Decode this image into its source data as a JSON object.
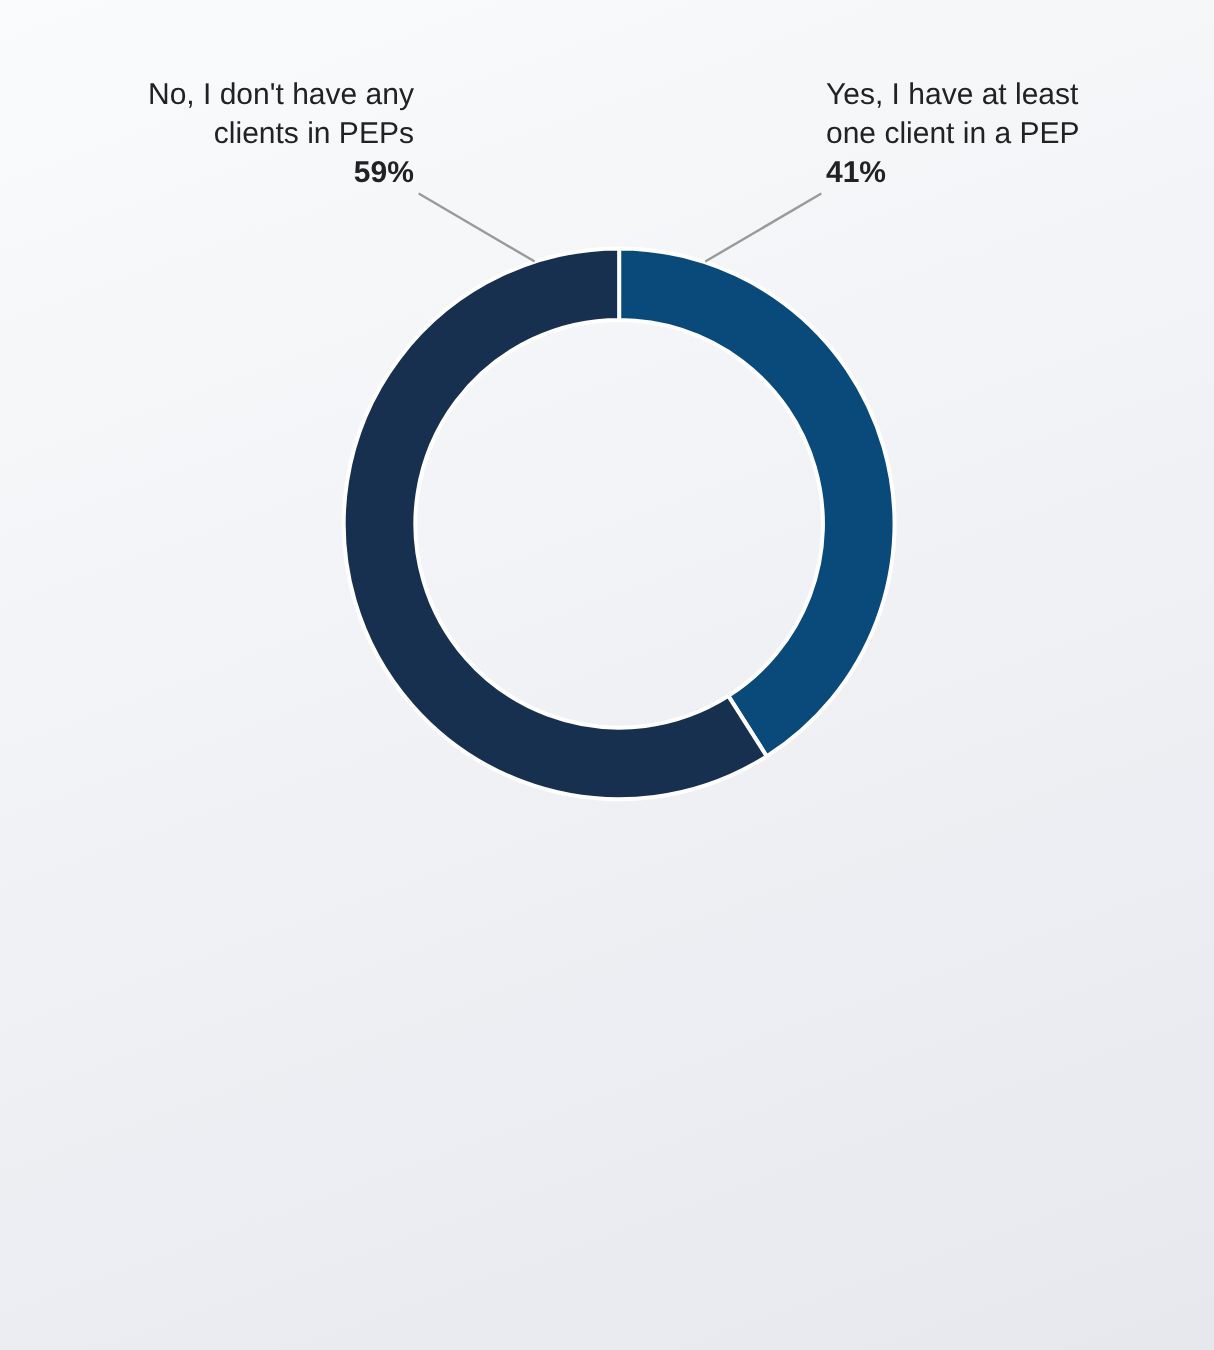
{
  "chart_data": {
    "type": "donut",
    "categories": [
      "Yes, I have at least one client in a PEP",
      "No, I don't have any clients in PEPs"
    ],
    "values": [
      41,
      59
    ],
    "colors": [
      "#0a4a7a",
      "#18304f"
    ],
    "value_labels": [
      "41%",
      "59%"
    ],
    "legend": false
  }
}
